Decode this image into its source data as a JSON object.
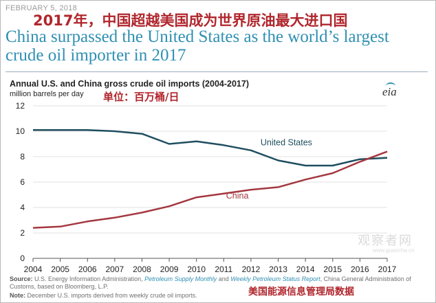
{
  "header": {
    "date": "FEBRUARY 5, 2018",
    "cn_title": "2017年，中国超越美国成为世界原油最大进口国",
    "en_title": "China surpassed the United States as the world’s largest crude oil importer in 2017",
    "unit_cn": "单位：百万桶/日"
  },
  "logo": {
    "text": "eia",
    "accent_color": "#2f8fb3"
  },
  "chart_data": {
    "type": "line",
    "title": "Annual U.S. and China gross crude oil imports (2004-2017)",
    "ylabel": "million barrels per day",
    "xlabel": "",
    "x": [
      2004,
      2005,
      2006,
      2007,
      2008,
      2009,
      2010,
      2011,
      2012,
      2013,
      2014,
      2015,
      2016,
      2017
    ],
    "ylim": [
      0,
      12
    ],
    "yticks": [
      0,
      2,
      4,
      6,
      8,
      10,
      12
    ],
    "grid": true,
    "series": [
      {
        "name": "United States",
        "color": "#1f4e5f",
        "values": [
          10.1,
          10.1,
          10.1,
          10.0,
          9.8,
          9.0,
          9.2,
          8.9,
          8.5,
          7.7,
          7.3,
          7.3,
          7.8,
          7.9
        ]
      },
      {
        "name": "China",
        "color": "#a4373f",
        "values": [
          2.4,
          2.5,
          2.9,
          3.2,
          3.6,
          4.1,
          4.8,
          5.1,
          5.4,
          5.6,
          6.2,
          6.7,
          7.6,
          8.4
        ]
      }
    ]
  },
  "footer": {
    "source_label": "Source:",
    "source_text_1": "U.S. Energy Information Administration,",
    "source_link_1": "Petroleum Supply Monthly",
    "source_text_2": "and",
    "source_link_2": "Weekly Petroleum Status Report",
    "source_text_3": ", China General Administration of Customs, based on Bloomberg, L.P.",
    "note_label": "Note:",
    "note_text": "December U.S. imports derived from weekly crude oil imports.",
    "cn_source": "美国能源信息管理局数据"
  },
  "watermark": {
    "cn": "观察者网",
    "en": "www.guancha.cn"
  }
}
